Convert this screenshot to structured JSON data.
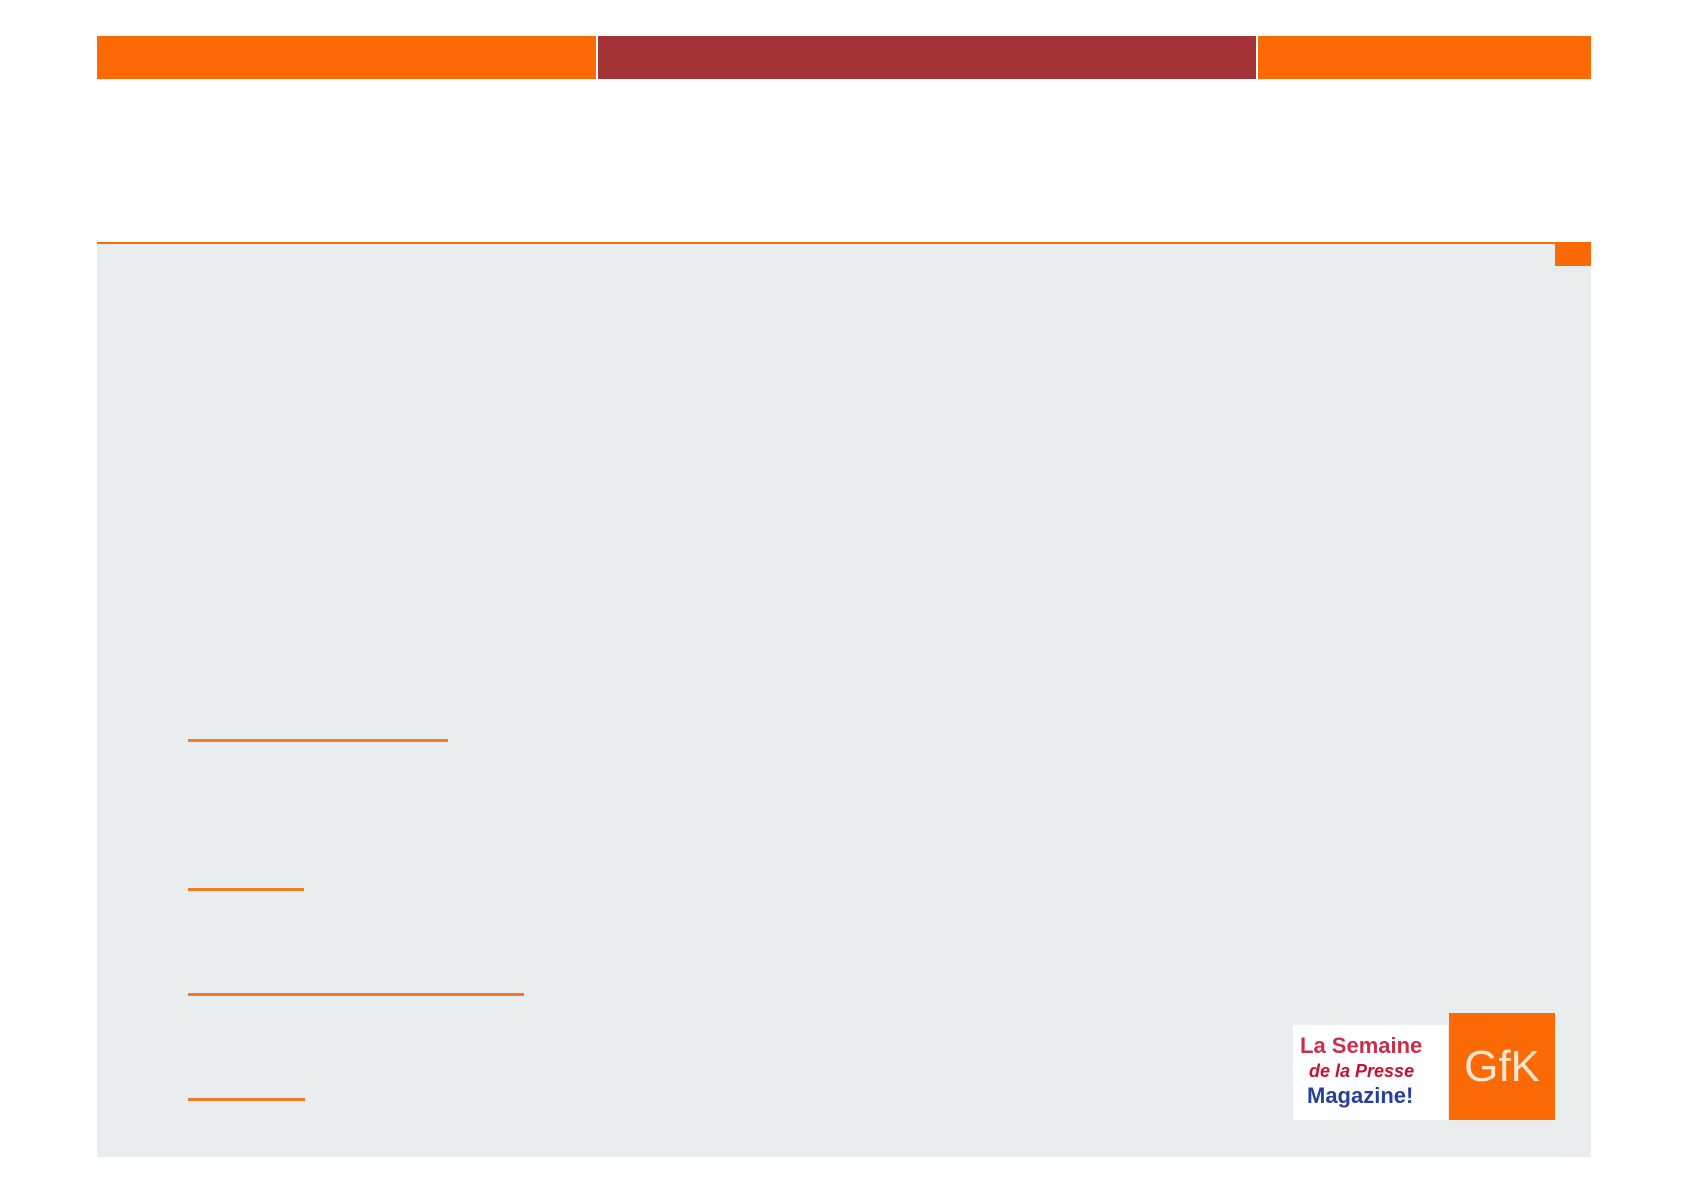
{
  "header": {
    "colors": {
      "accent": "#fb6a04",
      "secondary": "#a33336",
      "panel": "#e9edee"
    }
  },
  "logos": {
    "semaine": {
      "line1": "La Semaine",
      "line2": "de la Presse",
      "line3": "Magazine!"
    },
    "gfk": "GfK"
  }
}
